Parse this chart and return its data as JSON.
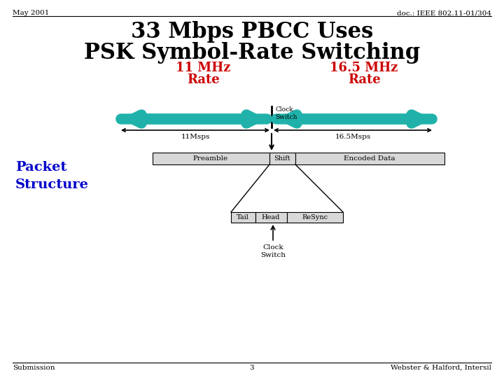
{
  "title_line1": "33 Mbps PBCC Uses",
  "title_line2": "PSK Symbol-Rate Switching",
  "header_left": "May 2001",
  "header_right": "doc.: IEEE 802.11-01/304",
  "footer_left": "Submission",
  "footer_center": "3",
  "footer_right": "Webster & Halford, Intersil",
  "label_11mhz": "11 MHz",
  "label_11mhz_rate": "Rate",
  "label_165mhz": "16.5 MHz",
  "label_165mhz_rate": "Rate",
  "label_11msps": "11Msps",
  "label_165msps": "16.5Msps",
  "label_clock_switch_top": "Clock\nSwitch",
  "label_preamble": "Preamble",
  "label_shift": "Shift",
  "label_encoded": "Encoded Data",
  "label_tail": "Tail",
  "label_head": "Head",
  "label_resync": "ReSync",
  "label_clock_switch_bottom": "Clock\nSwitch",
  "label_packet_structure": "Packet\nStructure",
  "color_title": "#000000",
  "color_red": "#cc0000",
  "color_teal": "#20b2aa",
  "color_blue_label": "#0000cc",
  "color_black": "#000000",
  "color_bg": "#ffffff",
  "color_box_fill": "#d8d8d8",
  "color_box_stroke": "#000000"
}
